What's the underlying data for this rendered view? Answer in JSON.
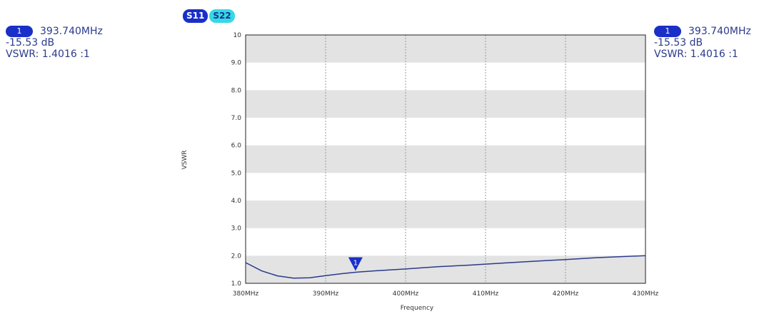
{
  "legend": {
    "items": [
      {
        "label": "S11",
        "color": "#1a2fc8"
      },
      {
        "label": "S22",
        "color": "#35d9e6"
      }
    ]
  },
  "marker_left": {
    "badge": "1",
    "freq": "393.740MHz",
    "db": "-15.53 dB",
    "vswr": "VSWR: 1.4016 :1"
  },
  "marker_right": {
    "badge": "1",
    "freq": "393.740MHz",
    "db": "-15.53 dB",
    "vswr": "VSWR: 1.4016 :1"
  },
  "chart_data": {
    "type": "line",
    "xlabel": "Frequency",
    "ylabel": "VSWR",
    "xlim": [
      380,
      430
    ],
    "ylim": [
      1.0,
      10
    ],
    "x_tick_values": [
      380,
      390,
      400,
      410,
      420,
      430
    ],
    "x_tick_labels": [
      "380MHz",
      "390MHz",
      "400MHz",
      "410MHz",
      "420MHz",
      "430MHz"
    ],
    "y_tick_values": [
      1.0,
      2.0,
      3.0,
      4.0,
      5.0,
      6.0,
      7.0,
      8.0,
      9.0,
      10
    ],
    "y_tick_labels": [
      "1.0",
      "2.0",
      "3.0",
      "4.0",
      "5.0",
      "6.0",
      "7.0",
      "8.0",
      "9.0",
      "10"
    ],
    "grid": true,
    "series": [
      {
        "name": "S11",
        "color": "#2b3a8c",
        "x": [
          380,
          382,
          384,
          386,
          388,
          390,
          392,
          393.74,
          396,
          400,
          404,
          408,
          412,
          416,
          420,
          424,
          428,
          430
        ],
        "y": [
          1.75,
          1.45,
          1.27,
          1.19,
          1.2,
          1.28,
          1.35,
          1.4,
          1.45,
          1.52,
          1.6,
          1.66,
          1.73,
          1.8,
          1.86,
          1.93,
          1.98,
          2.0
        ]
      }
    ],
    "markers": [
      {
        "label": "1",
        "x": 393.74,
        "y": 1.4016,
        "color": "#1a2fc8"
      }
    ]
  }
}
